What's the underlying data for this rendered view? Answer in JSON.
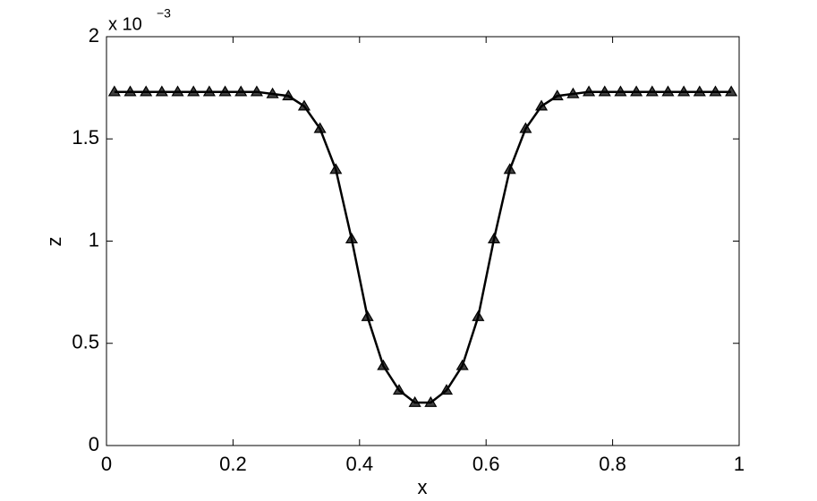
{
  "chart_data": {
    "type": "line",
    "x_label": "x",
    "y_label": "z",
    "y_multiplier": "x 10",
    "y_multiplier_exponent": "−3",
    "x": [
      0.0125,
      0.0375,
      0.0625,
      0.0875,
      0.1125,
      0.1375,
      0.1625,
      0.1875,
      0.2125,
      0.2375,
      0.2625,
      0.2875,
      0.3125,
      0.3375,
      0.3625,
      0.3875,
      0.4125,
      0.4375,
      0.4625,
      0.4875,
      0.5125,
      0.5375,
      0.5625,
      0.5875,
      0.6125,
      0.6375,
      0.6625,
      0.6875,
      0.7125,
      0.7375,
      0.7625,
      0.7875,
      0.8125,
      0.8375,
      0.8625,
      0.8875,
      0.9125,
      0.9375,
      0.9625,
      0.9875
    ],
    "series": [
      {
        "color": "#000000",
        "marker": "triangle",
        "values": [
          1.73,
          1.73,
          1.73,
          1.73,
          1.73,
          1.73,
          1.73,
          1.73,
          1.73,
          1.73,
          1.72,
          1.71,
          1.66,
          1.55,
          1.35,
          1.01,
          0.63,
          0.39,
          0.27,
          0.21,
          0.21,
          0.27,
          0.39,
          0.63,
          1.01,
          1.35,
          1.55,
          1.66,
          1.71,
          1.72,
          1.73,
          1.73,
          1.73,
          1.73,
          1.73,
          1.73,
          1.73,
          1.73,
          1.73,
          1.73
        ]
      }
    ],
    "xlim": [
      0,
      1
    ],
    "xticks": [
      0,
      0.2,
      0.4,
      0.6,
      0.8,
      1
    ],
    "ylim": [
      0,
      2
    ],
    "yticks": [
      0,
      0.5,
      1,
      1.5,
      2
    ],
    "grid": false
  }
}
